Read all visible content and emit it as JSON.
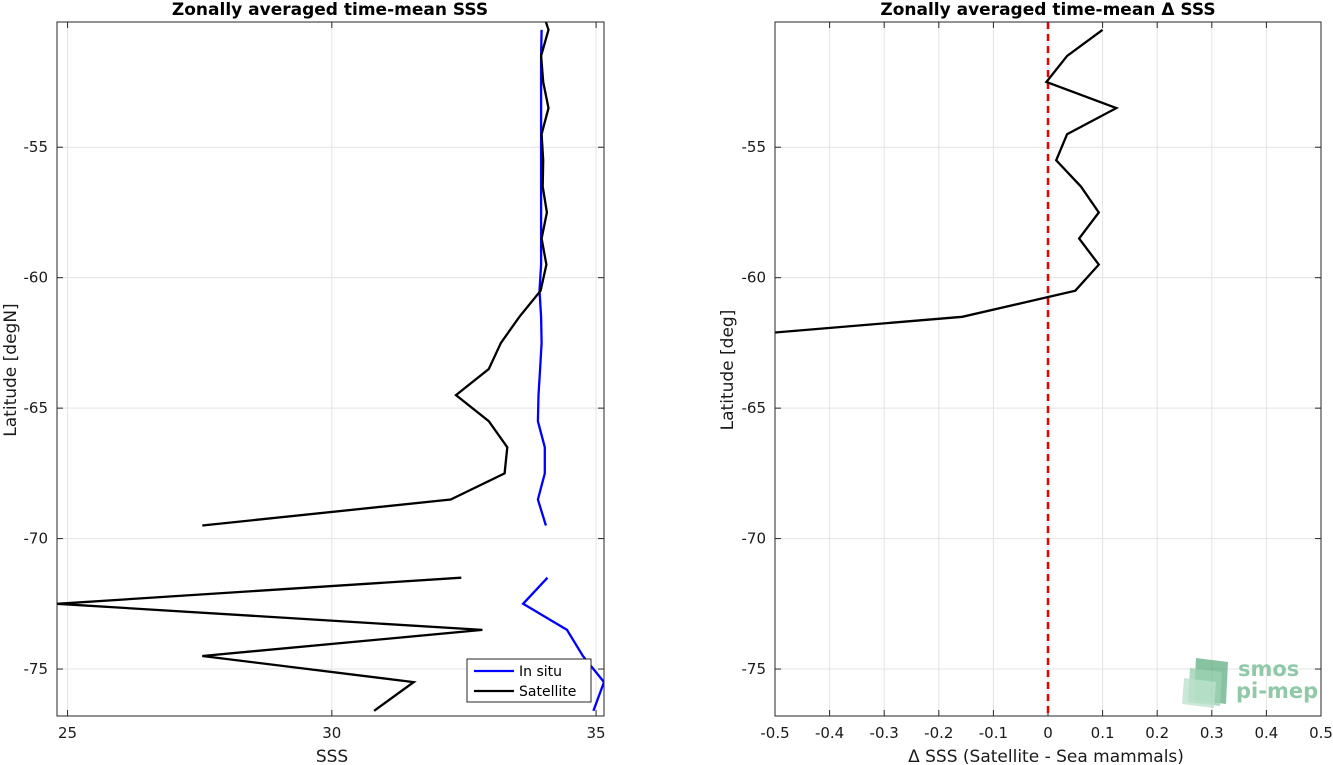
{
  "chart_data": [
    {
      "type": "line",
      "title": "Zonally averaged time-mean SSS",
      "xlabel": "SSS",
      "ylabel": "Latitude [degN]",
      "xlim": [
        24.8,
        35.15
      ],
      "ylim": [
        -76.8,
        -50.2
      ],
      "xticks": [
        25,
        30,
        35
      ],
      "xtick_labels": [
        "25",
        "30",
        "35"
      ],
      "yticks": [
        -75,
        -70,
        -65,
        -60,
        -55
      ],
      "ytick_labels": [
        "-75",
        "-70",
        "-65",
        "-60",
        "-55"
      ],
      "grid": true,
      "legend_position": "bottom-right",
      "series": [
        {
          "name": "In situ",
          "color": "#0000ff",
          "segments": [
            [
              {
                "x": 33.97,
                "y": -50.5
              },
              {
                "x": 33.96,
                "y": -51.5
              },
              {
                "x": 33.96,
                "y": -52.5
              },
              {
                "x": 33.96,
                "y": -53.5
              },
              {
                "x": 33.96,
                "y": -54.5
              },
              {
                "x": 33.96,
                "y": -55.5
              },
              {
                "x": 33.96,
                "y": -56.5
              },
              {
                "x": 33.96,
                "y": -57.5
              },
              {
                "x": 33.96,
                "y": -58.5
              },
              {
                "x": 33.96,
                "y": -59.5
              },
              {
                "x": 33.93,
                "y": -60.5
              },
              {
                "x": 33.96,
                "y": -61.5
              },
              {
                "x": 33.97,
                "y": -62.5
              },
              {
                "x": 33.94,
                "y": -63.5
              },
              {
                "x": 33.91,
                "y": -64.5
              },
              {
                "x": 33.9,
                "y": -65.5
              },
              {
                "x": 34.03,
                "y": -66.5
              },
              {
                "x": 34.03,
                "y": -67.5
              },
              {
                "x": 33.9,
                "y": -68.5
              },
              {
                "x": 34.05,
                "y": -69.5
              }
            ],
            [
              {
                "x": 34.08,
                "y": -71.5
              },
              {
                "x": 33.62,
                "y": -72.5
              },
              {
                "x": 34.45,
                "y": -73.5
              },
              {
                "x": 34.75,
                "y": -74.5
              },
              {
                "x": 35.15,
                "y": -75.5
              },
              {
                "x": 34.95,
                "y": -76.6
              }
            ]
          ]
        },
        {
          "name": "Satellite",
          "color": "#000000",
          "segments": [
            [
              {
                "x": 34.05,
                "y": -50.2
              },
              {
                "x": 34.1,
                "y": -50.5
              },
              {
                "x": 33.96,
                "y": -51.5
              },
              {
                "x": 34.0,
                "y": -52.5
              },
              {
                "x": 34.1,
                "y": -53.5
              },
              {
                "x": 33.97,
                "y": -54.5
              },
              {
                "x": 34.0,
                "y": -55.5
              },
              {
                "x": 33.99,
                "y": -56.5
              },
              {
                "x": 34.07,
                "y": -57.5
              },
              {
                "x": 33.97,
                "y": -58.5
              },
              {
                "x": 34.06,
                "y": -59.5
              },
              {
                "x": 33.95,
                "y": -60.5
              },
              {
                "x": 33.55,
                "y": -61.5
              },
              {
                "x": 33.2,
                "y": -62.5
              },
              {
                "x": 32.97,
                "y": -63.5
              },
              {
                "x": 32.35,
                "y": -64.5
              },
              {
                "x": 32.97,
                "y": -65.5
              },
              {
                "x": 33.32,
                "y": -66.5
              },
              {
                "x": 33.27,
                "y": -67.5
              },
              {
                "x": 32.25,
                "y": -68.5
              },
              {
                "x": 27.55,
                "y": -69.5
              }
            ],
            [
              {
                "x": 32.45,
                "y": -71.5
              },
              {
                "x": 24.8,
                "y": -72.5
              },
              {
                "x": 32.85,
                "y": -73.5
              },
              {
                "x": 27.55,
                "y": -74.5
              },
              {
                "x": 31.55,
                "y": -75.5
              },
              {
                "x": 30.8,
                "y": -76.6
              }
            ]
          ]
        }
      ]
    },
    {
      "type": "line",
      "title": "Zonally averaged time-mean Δ SSS",
      "xlabel": "Δ SSS (Satellite - Sea mammals)",
      "ylabel": "Latitude [deg]",
      "xlim": [
        -0.5,
        0.5
      ],
      "ylim": [
        -76.8,
        -50.2
      ],
      "xticks": [
        -0.5,
        -0.4,
        -0.3,
        -0.2,
        -0.1,
        0,
        0.1,
        0.2,
        0.3,
        0.4,
        0.5
      ],
      "xtick_labels": [
        "-0.5",
        "-0.4",
        "-0.3",
        "-0.2",
        "-0.1",
        "0",
        "0.1",
        "0.2",
        "0.3",
        "0.4",
        "0.5"
      ],
      "yticks": [
        -75,
        -70,
        -65,
        -60,
        -55
      ],
      "ytick_labels": [
        "-75",
        "-70",
        "-65",
        "-60",
        "-55"
      ],
      "grid": true,
      "reference_line": {
        "x": 0,
        "color": "#e60000",
        "style": "dashed"
      },
      "series": [
        {
          "color": "#000000",
          "points": [
            {
              "x": 0.1,
              "y": -50.5
            },
            {
              "x": 0.035,
              "y": -51.5
            },
            {
              "x": -0.003,
              "y": -52.5
            },
            {
              "x": 0.125,
              "y": -53.5
            },
            {
              "x": 0.035,
              "y": -54.5
            },
            {
              "x": 0.015,
              "y": -55.5
            },
            {
              "x": 0.06,
              "y": -56.5
            },
            {
              "x": 0.093,
              "y": -57.5
            },
            {
              "x": 0.057,
              "y": -58.5
            },
            {
              "x": 0.093,
              "y": -59.5
            },
            {
              "x": 0.05,
              "y": -60.5
            },
            {
              "x": -0.157,
              "y": -61.5
            },
            {
              "x": -0.5,
              "y": -62.1
            }
          ]
        }
      ]
    }
  ],
  "watermark": {
    "line1": "smos",
    "line2": "pi-mep",
    "color": "#6fb98f"
  }
}
